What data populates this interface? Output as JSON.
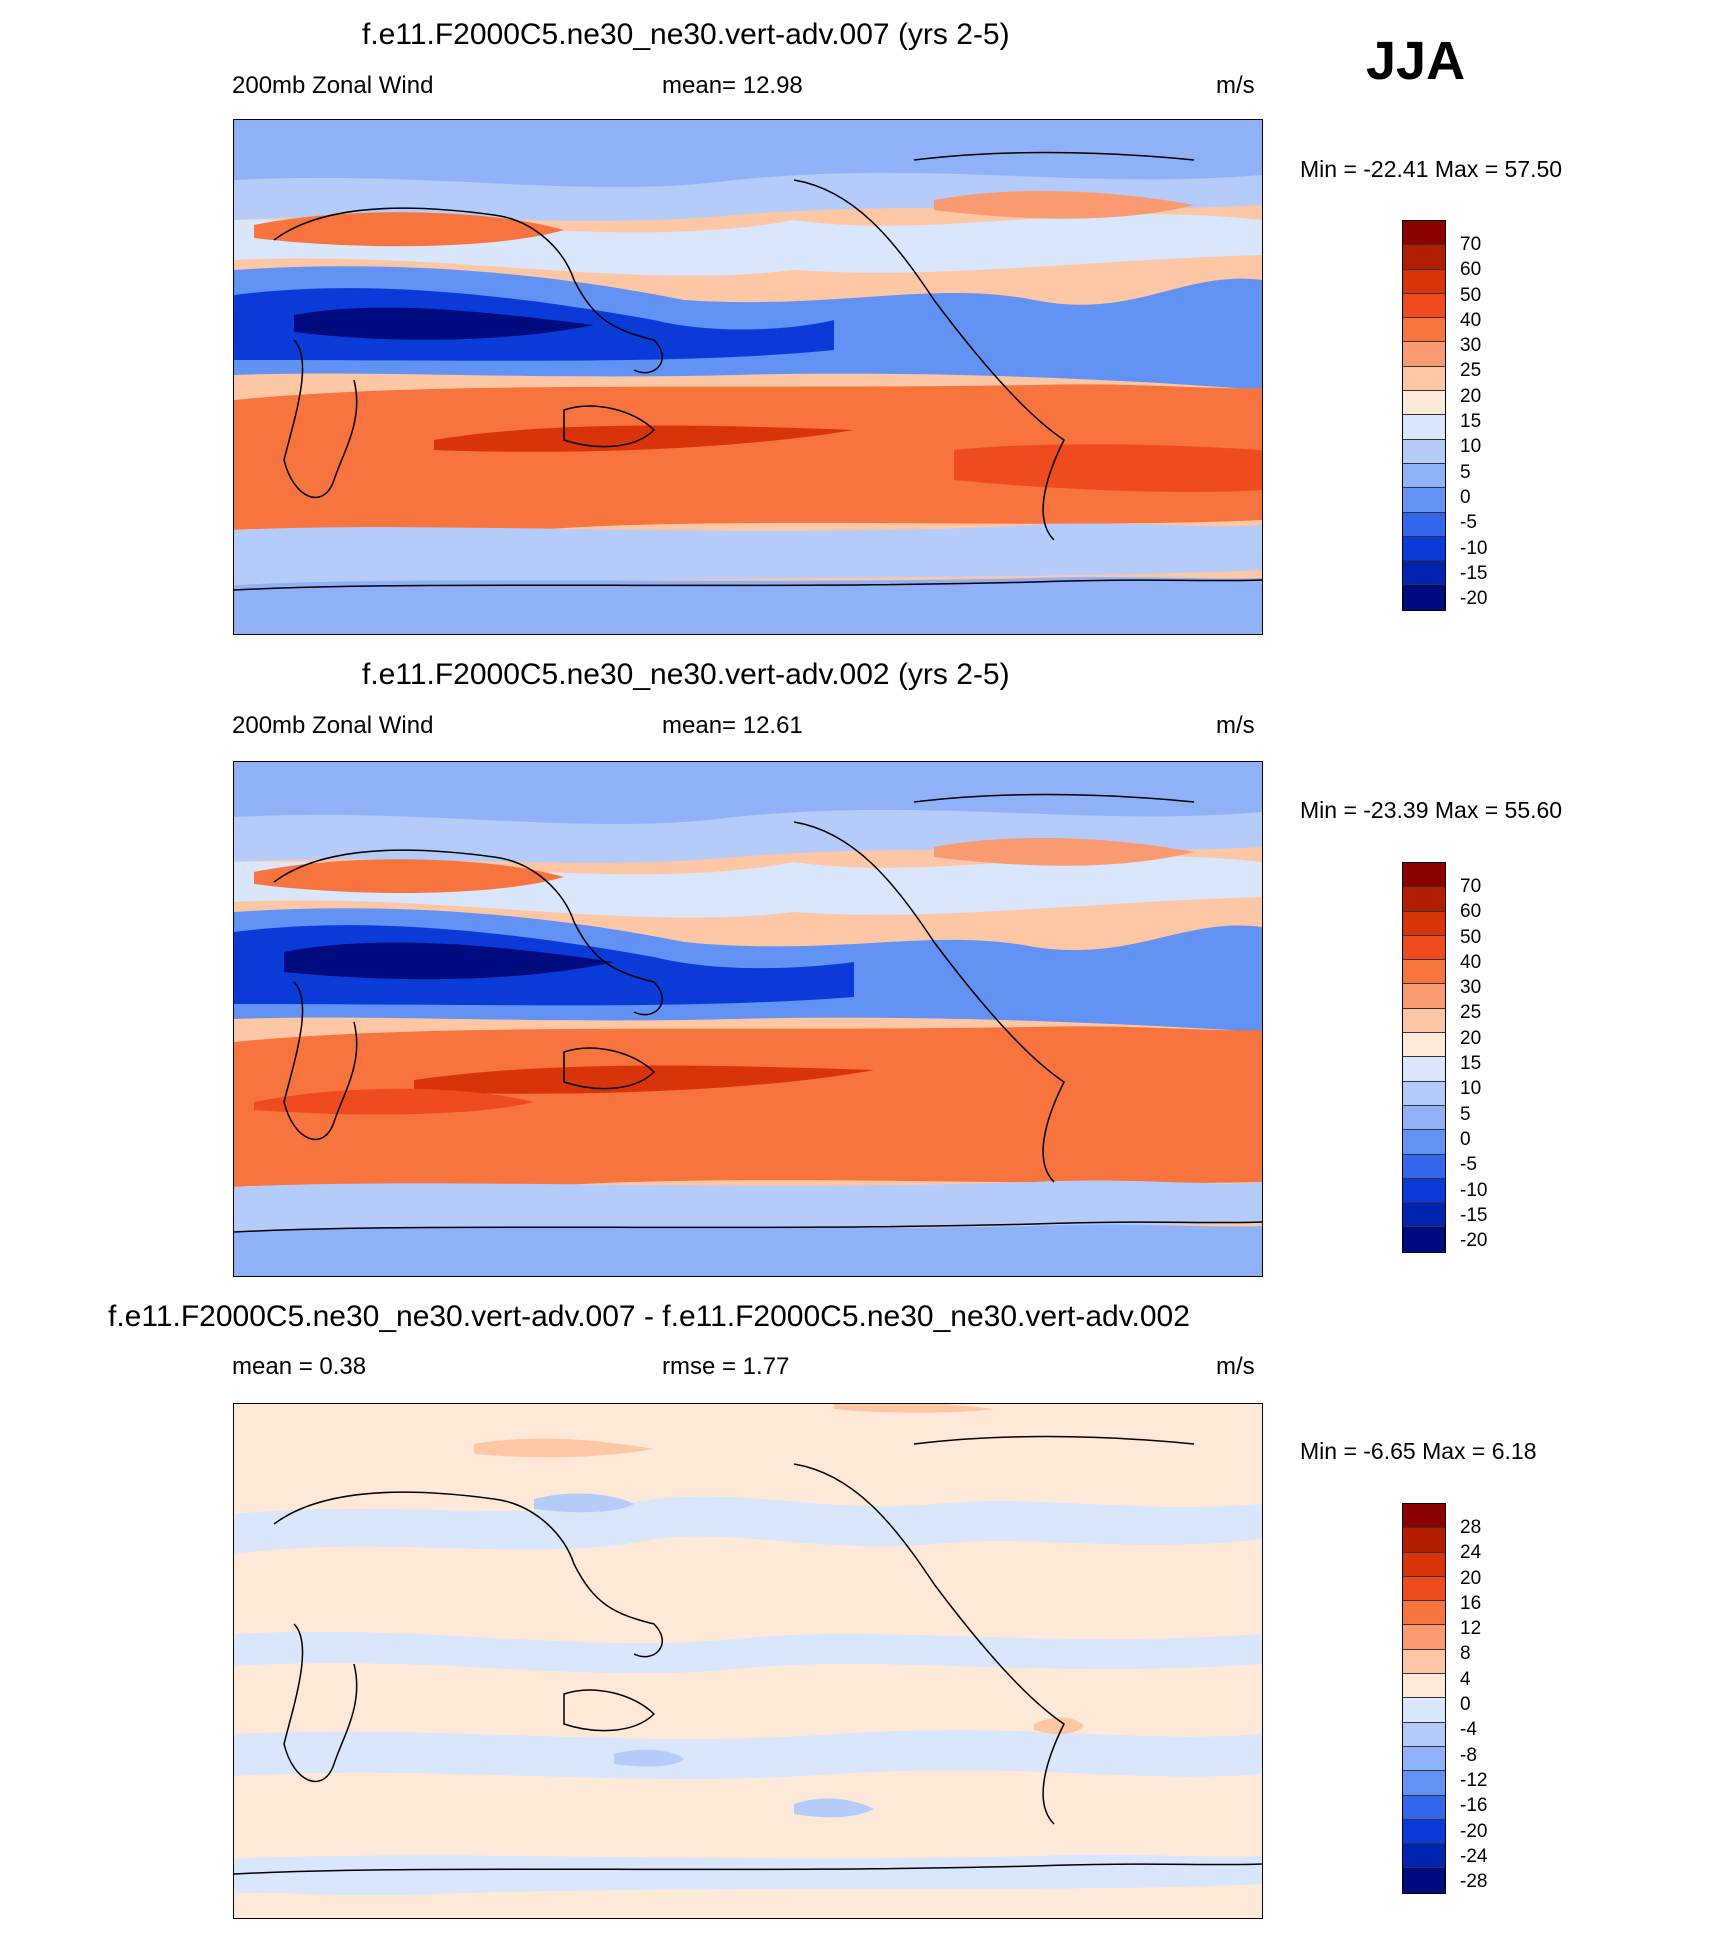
{
  "season": "JJA",
  "panels": [
    {
      "title": "f.e11.F2000C5.ne30_ne30.vert-adv.007 (yrs 2-5)",
      "left": "200mb Zonal Wind",
      "center": "mean=  12.98",
      "units": "m/s",
      "minmax": "Min = -22.41 Max =  57.50",
      "colorbar_labels": [
        "70",
        "60",
        "50",
        "40",
        "30",
        "25",
        "20",
        "15",
        "10",
        "5",
        "0",
        "-5",
        "-10",
        "-15",
        "-20"
      ]
    },
    {
      "title": "f.e11.F2000C5.ne30_ne30.vert-adv.002 (yrs 2-5)",
      "left": "200mb Zonal Wind",
      "center": "mean=  12.61",
      "units": "m/s",
      "minmax": "Min = -23.39 Max =  55.60",
      "colorbar_labels": [
        "70",
        "60",
        "50",
        "40",
        "30",
        "25",
        "20",
        "15",
        "10",
        "5",
        "0",
        "-5",
        "-10",
        "-15",
        "-20"
      ]
    },
    {
      "title": "f.e11.F2000C5.ne30_ne30.vert-adv.007 - f.e11.F2000C5.ne30_ne30.vert-adv.002",
      "left": "mean =   0.38",
      "center": "rmse =   1.77",
      "units": "m/s",
      "minmax": "Min =  -6.65 Max =   6.18",
      "colorbar_labels": [
        "28",
        "24",
        "20",
        "16",
        "12",
        "8",
        "4",
        "0",
        "-4",
        "-8",
        "-12",
        "-16",
        "-20",
        "-24",
        "-28"
      ]
    }
  ],
  "colors": {
    "scale": [
      "#8b0000",
      "#b21f00",
      "#d9330a",
      "#ef4b1f",
      "#f8743f",
      "#fa9a70",
      "#fdc6a5",
      "#fee9d9",
      "#d9e6fb",
      "#b5ccfb",
      "#8fb1f7",
      "#6192f4",
      "#3266ec",
      "#0a3bd8",
      "#0024b0",
      "#000b80"
    ]
  }
}
